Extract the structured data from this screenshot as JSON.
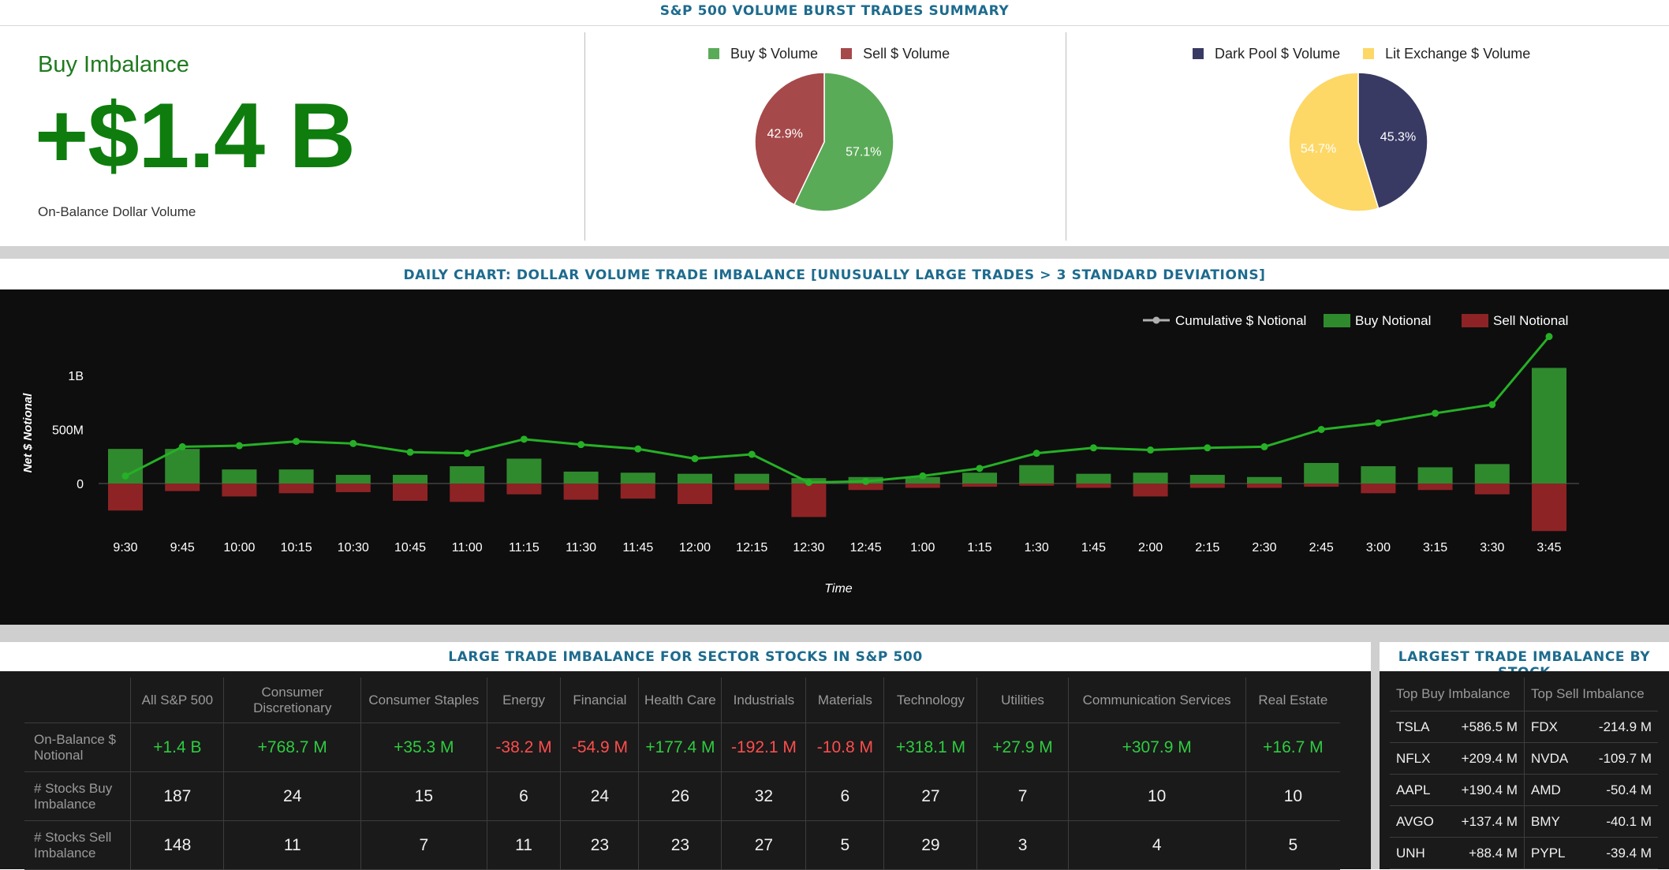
{
  "summary": {
    "title": "S&P 500 VOLUME BURST TRADES SUMMARY",
    "kpi_label": "Buy Imbalance",
    "kpi_value": "+$1.4 B",
    "kpi_sub": "On-Balance Dollar Volume"
  },
  "pie_buy_sell": {
    "legend": [
      "Buy $ Volume",
      "Sell $ Volume"
    ],
    "slices": [
      {
        "name": "Buy $ Volume",
        "value": 57.1,
        "label": "57.1%",
        "color": "#5aab58"
      },
      {
        "name": "Sell $ Volume",
        "value": 42.9,
        "label": "42.9%",
        "color": "#a6494a"
      }
    ]
  },
  "pie_dark_lit": {
    "legend": [
      "Dark Pool $ Volume",
      "Lit Exchange $ Volume"
    ],
    "slices": [
      {
        "name": "Dark Pool $ Volume",
        "value": 45.3,
        "label": "45.3%",
        "color": "#383a64"
      },
      {
        "name": "Lit Exchange $ Volume",
        "value": 54.7,
        "label": "54.7%",
        "color": "#fdd867"
      }
    ]
  },
  "daily_chart": {
    "title": "DAILY CHART: DOLLAR VOLUME TRADE IMBALANCE [UNUSUALLY LARGE TRADES > 3 STANDARD DEVIATIONS]",
    "legend": {
      "cumulative": "Cumulative $ Notional",
      "buy": "Buy Notional",
      "sell": "Sell Notional"
    },
    "colors": {
      "buy": "#2f8a2e",
      "sell": "#8e2325",
      "line": "#26b026"
    }
  },
  "chart_data": {
    "type": "bar",
    "xlabel": "Time",
    "ylabel": "Net $ Notional",
    "ylim": [
      -500,
      1400
    ],
    "y_ticks": [
      {
        "value": 0,
        "label": "0"
      },
      {
        "value": 500,
        "label": "500M"
      },
      {
        "value": 1000,
        "label": "1B"
      }
    ],
    "categories": [
      "9:30",
      "9:45",
      "10:00",
      "10:15",
      "10:30",
      "10:45",
      "11:00",
      "11:15",
      "11:30",
      "11:45",
      "12:00",
      "12:15",
      "12:30",
      "12:45",
      "1:00",
      "1:15",
      "1:30",
      "1:45",
      "2:00",
      "2:15",
      "2:30",
      "2:45",
      "3:00",
      "3:15",
      "3:30",
      "3:45"
    ],
    "series": [
      {
        "name": "Buy Notional",
        "type": "bar",
        "values": [
          320,
          320,
          130,
          130,
          80,
          80,
          160,
          230,
          110,
          100,
          90,
          90,
          50,
          60,
          60,
          100,
          170,
          90,
          100,
          80,
          60,
          190,
          160,
          150,
          180,
          1070
        ]
      },
      {
        "name": "Sell Notional",
        "type": "bar",
        "values": [
          -250,
          -70,
          -120,
          -90,
          -80,
          -160,
          -170,
          -100,
          -150,
          -140,
          -190,
          -60,
          -310,
          -60,
          -40,
          -30,
          -20,
          -40,
          -120,
          -40,
          -40,
          -30,
          -90,
          -60,
          -100,
          -440
        ]
      },
      {
        "name": "Cumulative $ Notional",
        "type": "line",
        "values": [
          70,
          340,
          350,
          390,
          370,
          290,
          280,
          410,
          360,
          320,
          230,
          270,
          10,
          20,
          70,
          140,
          280,
          330,
          310,
          330,
          340,
          500,
          560,
          650,
          730,
          1360
        ]
      }
    ]
  },
  "sector_section": {
    "title": "LARGE TRADE IMBALANCE FOR SECTOR STOCKS IN S&P 500",
    "columns": [
      "All S&P 500",
      "Consumer Discretionary",
      "Consumer Staples",
      "Energy",
      "Financial",
      "Health Care",
      "Industrials",
      "Materials",
      "Technology",
      "Utilities",
      "Communication Services",
      "Real Estate"
    ],
    "rows": [
      {
        "label": "On-Balance $ Notional",
        "values": [
          "+1.4 B",
          "+768.7 M",
          "+35.3 M",
          "-38.2 M",
          "-54.9 M",
          "+177.4 M",
          "-192.1 M",
          "-10.8 M",
          "+318.1 M",
          "+27.9 M",
          "+307.9 M",
          "+16.7 M"
        ]
      },
      {
        "label": "# Stocks Buy Imbalance",
        "values": [
          "187",
          "24",
          "15",
          "6",
          "24",
          "26",
          "32",
          "6",
          "27",
          "7",
          "10",
          "10"
        ]
      },
      {
        "label": "# Stocks Sell Imbalance",
        "values": [
          "148",
          "11",
          "7",
          "11",
          "23",
          "23",
          "27",
          "5",
          "29",
          "3",
          "4",
          "5"
        ]
      }
    ]
  },
  "stock_section": {
    "title": "LARGEST TRADE IMBALANCE BY STOCK",
    "headers": [
      "Top Buy Imbalance",
      "Top Sell Imbalance"
    ],
    "rows": [
      {
        "buy": "TSLA",
        "buy_value": "+586.5 M",
        "sell": "FDX",
        "sell_value": "-214.9 M"
      },
      {
        "buy": "NFLX",
        "buy_value": "+209.4 M",
        "sell": "NVDA",
        "sell_value": "-109.7 M"
      },
      {
        "buy": "AAPL",
        "buy_value": "+190.4 M",
        "sell": "AMD",
        "sell_value": "-50.4 M"
      },
      {
        "buy": "AVGO",
        "buy_value": "+137.4 M",
        "sell": "BMY",
        "sell_value": "-40.1 M"
      },
      {
        "buy": "UNH",
        "buy_value": "+88.4 M",
        "sell": "PYPL",
        "sell_value": "-39.4 M"
      }
    ]
  }
}
